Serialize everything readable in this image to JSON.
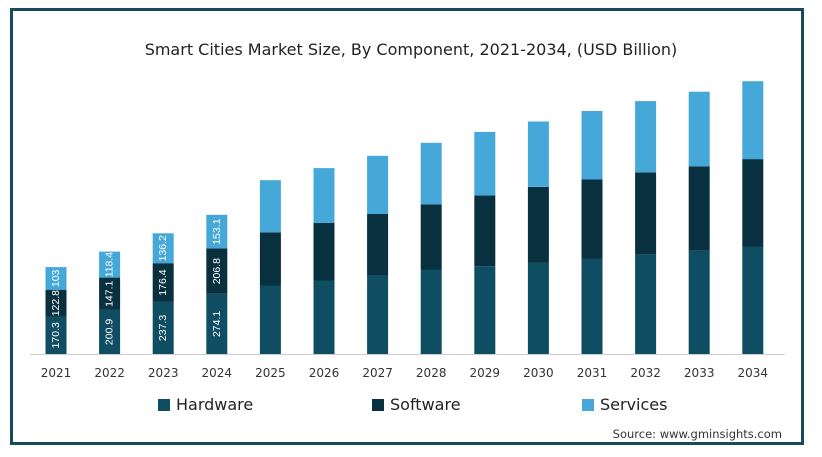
{
  "chart_data": {
    "type": "bar",
    "stacked": true,
    "title": "Smart Cities Market Size, By Component, 2021-2034, (USD Billion)",
    "categories": [
      "2021",
      "2022",
      "2023",
      "2024",
      "2025",
      "2026",
      "2027",
      "2028",
      "2029",
      "2030",
      "2031",
      "2032",
      "2033",
      "2034"
    ],
    "series": [
      {
        "name": "Hardware",
        "color": "#0f4d63",
        "values": [
          170.3,
          200.9,
          237.3,
          274.1,
          312,
          335,
          360,
          385,
          400,
          415,
          435,
          455,
          470,
          490
        ],
        "labels": [
          "170.3",
          "200.9",
          "237.3",
          "274.1",
          "",
          "",
          "",
          "",
          "",
          "",
          "",
          "",
          "",
          ""
        ]
      },
      {
        "name": "Software",
        "color": "#08303f",
        "values": [
          122.8,
          147.1,
          176.4,
          206.8,
          242,
          262,
          278,
          297,
          322,
          346,
          360,
          372,
          385,
          398
        ],
        "labels": [
          "122.8",
          "147.1",
          "176.4",
          "206.8",
          "",
          "",
          "",
          "",
          "",
          "",
          "",
          "",
          "",
          ""
        ]
      },
      {
        "name": "Services",
        "color": "#45a8d8",
        "values": [
          103,
          118.4,
          136.2,
          153.1,
          238,
          250,
          265,
          280,
          290,
          298,
          312,
          325,
          340,
          355
        ],
        "labels": [
          "103",
          "118.4",
          "136.2",
          "153.1",
          "",
          "",
          "",
          "",
          "",
          "",
          "",
          "",
          "",
          ""
        ]
      }
    ],
    "grid": false,
    "legend_position": "bottom"
  },
  "source": "Source: www.gminsights.com"
}
